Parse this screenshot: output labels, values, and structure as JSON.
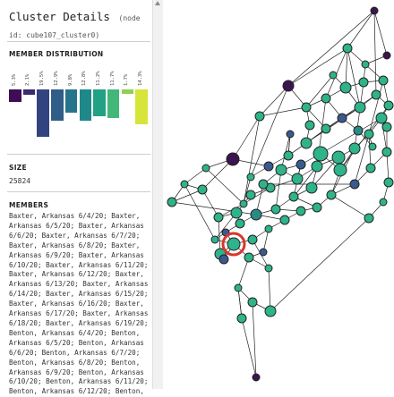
{
  "panel": {
    "title": "Cluster Details",
    "node_id": "(node id: cube107_cluster0)"
  },
  "distribution": {
    "heading": "MEMBER DISTRIBUTION",
    "bins": [
      {
        "label": "5.3%",
        "value": 5.3,
        "color": "#3f0d55"
      },
      {
        "label": "2.1%",
        "value": 2.1,
        "color": "#3b2a6e"
      },
      {
        "label": "19.5%",
        "value": 19.5,
        "color": "#33437f"
      },
      {
        "label": "12.9%",
        "value": 12.9,
        "color": "#2f5d87"
      },
      {
        "label": "9.8%",
        "value": 9.8,
        "color": "#26748b"
      },
      {
        "label": "12.8%",
        "value": 12.8,
        "color": "#1f898a"
      },
      {
        "label": "11.2%",
        "value": 11.2,
        "color": "#22a184"
      },
      {
        "label": "11.7%",
        "value": 11.7,
        "color": "#43b77a"
      },
      {
        "label": "1.7%",
        "value": 1.7,
        "color": "#8fd14f"
      },
      {
        "label": "14.3%",
        "value": 14.3,
        "color": "#d7e43a"
      }
    ]
  },
  "size": {
    "heading": "SIZE",
    "value": "25824"
  },
  "members": {
    "heading": "MEMBERS",
    "text": "Baxter, Arkansas 6/4/20; Baxter, Arkansas 6/5/20; Baxter, Arkansas 6/6/20; Baxter, Arkansas 6/7/20; Baxter, Arkansas 6/8/20; Baxter, Arkansas 6/9/20; Baxter, Arkansas 6/10/20; Baxter, Arkansas 6/11/20; Baxter, Arkansas 6/12/20; Baxter, Arkansas 6/13/20; Baxter, Arkansas 6/14/20; Baxter, Arkansas 6/15/20; Baxter, Arkansas 6/16/20; Baxter, Arkansas 6/17/20; Baxter, Arkansas 6/18/20; Baxter, Arkansas 6/19/20; Benton, Arkansas 6/4/20; Benton, Arkansas 6/5/20; Benton, Arkansas 6/6/20; Benton, Arkansas 6/7/20; Benton, Arkansas 6/8/20; Benton, Arkansas 6/9/20; Benton, Arkansas 6/10/20; Benton, Arkansas 6/11/20; Benton, Arkansas 6/12/20; Benton,"
  },
  "colors": {
    "selection_ring": "#d9362b",
    "node_teal": "#2fb38a",
    "node_purple": "#3b1450",
    "node_blue": "#3a5a8f",
    "node_dark_teal": "#2a8a86"
  }
}
